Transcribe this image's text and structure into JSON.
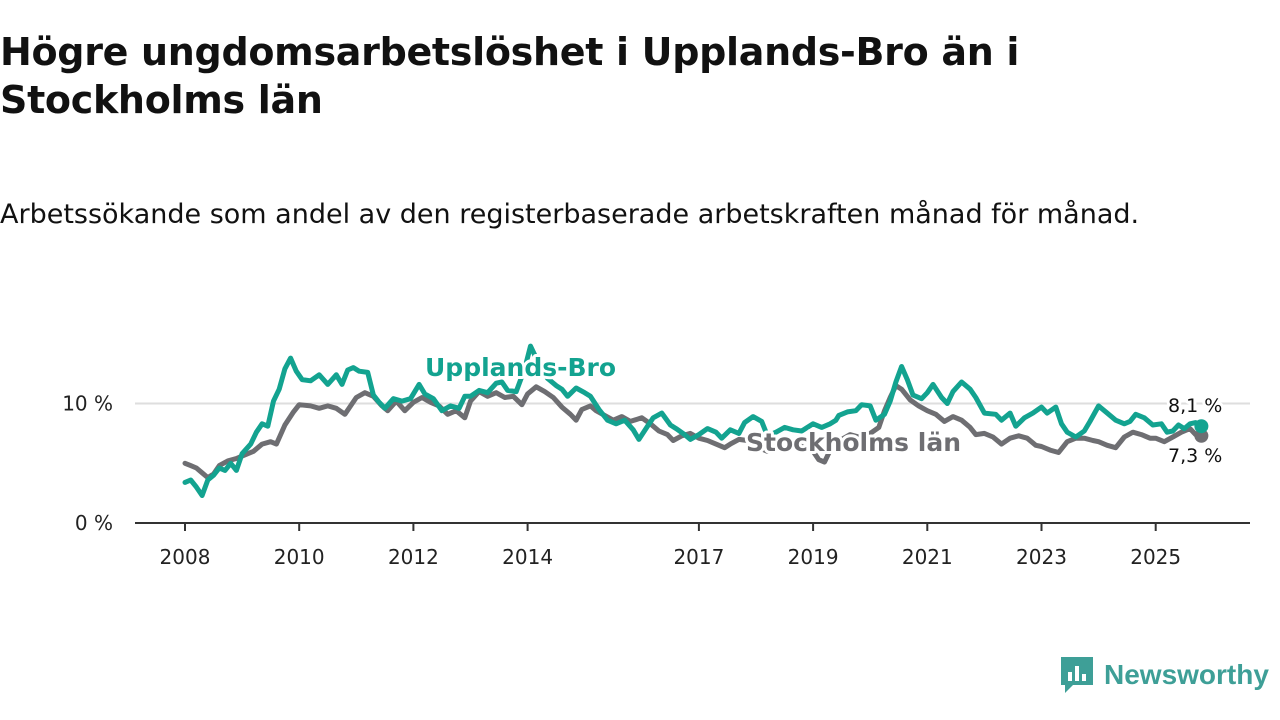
{
  "title": "Högre ungdomsarbetslöshet i Upplands-Bro än i Stockholms län",
  "subtitle": "Arbetssökande som andel av den registerbaserade arbetskraften månad för månad.",
  "brand": {
    "name": "Newsworthy",
    "icon": "newsworthy-logo-icon",
    "color": "#3e9f97"
  },
  "chart_data": {
    "type": "line",
    "title": "Högre ungdomsarbetslöshet i Upplands-Bro än i Stockholms län",
    "xlabel": "",
    "ylabel": "",
    "xlim": [
      2007.75,
      2026.05
    ],
    "ylim": [
      0,
      15
    ],
    "x_ticks": [
      {
        "value": 2008,
        "label": "2008"
      },
      {
        "value": 2010,
        "label": "2010"
      },
      {
        "value": 2012,
        "label": "2012"
      },
      {
        "value": 2014,
        "label": "2014"
      },
      {
        "value": 2017,
        "label": "2017"
      },
      {
        "value": 2019,
        "label": "2019"
      },
      {
        "value": 2021,
        "label": "2021"
      },
      {
        "value": 2023,
        "label": "2023"
      },
      {
        "value": 2025,
        "label": "2025"
      }
    ],
    "y_ticks": [
      {
        "value": 0,
        "label": "0 %"
      },
      {
        "value": 10,
        "label": "10 %"
      }
    ],
    "grid": true,
    "series": [
      {
        "name": "Stockholms län",
        "color": "#6e6e72",
        "end_label": "7,3 %",
        "points": [
          [
            2008.0,
            5.0
          ],
          [
            2008.1,
            4.8
          ],
          [
            2008.2,
            4.6
          ],
          [
            2008.3,
            4.2
          ],
          [
            2008.4,
            3.8
          ],
          [
            2008.5,
            4.1
          ],
          [
            2008.6,
            4.8
          ],
          [
            2008.75,
            5.2
          ],
          [
            2008.9,
            5.4
          ],
          [
            2009.0,
            5.6
          ],
          [
            2009.2,
            6.0
          ],
          [
            2009.35,
            6.6
          ],
          [
            2009.5,
            6.8
          ],
          [
            2009.6,
            6.6
          ],
          [
            2009.75,
            8.2
          ],
          [
            2009.9,
            9.3
          ],
          [
            2010.0,
            9.9
          ],
          [
            2010.2,
            9.8
          ],
          [
            2010.35,
            9.6
          ],
          [
            2010.5,
            9.8
          ],
          [
            2010.65,
            9.6
          ],
          [
            2010.8,
            9.1
          ],
          [
            2010.9,
            9.8
          ],
          [
            2011.0,
            10.5
          ],
          [
            2011.15,
            10.9
          ],
          [
            2011.3,
            10.6
          ],
          [
            2011.45,
            9.8
          ],
          [
            2011.55,
            9.4
          ],
          [
            2011.7,
            10.2
          ],
          [
            2011.85,
            9.4
          ],
          [
            2012.0,
            10.1
          ],
          [
            2012.15,
            10.5
          ],
          [
            2012.3,
            10.1
          ],
          [
            2012.45,
            9.8
          ],
          [
            2012.6,
            9.1
          ],
          [
            2012.75,
            9.4
          ],
          [
            2012.9,
            8.8
          ],
          [
            2013.0,
            10.2
          ],
          [
            2013.15,
            11.0
          ],
          [
            2013.3,
            10.6
          ],
          [
            2013.45,
            10.9
          ],
          [
            2013.6,
            10.5
          ],
          [
            2013.75,
            10.6
          ],
          [
            2013.9,
            9.9
          ],
          [
            2014.0,
            10.8
          ],
          [
            2014.15,
            11.4
          ],
          [
            2014.3,
            11.0
          ],
          [
            2014.45,
            10.5
          ],
          [
            2014.6,
            9.7
          ],
          [
            2014.75,
            9.1
          ],
          [
            2014.85,
            8.6
          ],
          [
            2014.95,
            9.5
          ],
          [
            2015.1,
            9.8
          ],
          [
            2015.2,
            9.4
          ],
          [
            2015.35,
            9.0
          ],
          [
            2015.5,
            8.6
          ],
          [
            2015.65,
            8.9
          ],
          [
            2015.8,
            8.5
          ],
          [
            2016.0,
            8.8
          ],
          [
            2016.15,
            8.3
          ],
          [
            2016.3,
            7.7
          ],
          [
            2016.45,
            7.4
          ],
          [
            2016.55,
            6.9
          ],
          [
            2016.7,
            7.3
          ],
          [
            2016.85,
            7.5
          ],
          [
            2017.0,
            7.1
          ],
          [
            2017.15,
            6.9
          ],
          [
            2017.3,
            6.6
          ],
          [
            2017.45,
            6.3
          ],
          [
            2017.55,
            6.6
          ],
          [
            2017.7,
            7.0
          ],
          [
            2017.85,
            6.9
          ],
          [
            2018.0,
            6.4
          ],
          [
            2018.2,
            6.0
          ],
          [
            2018.35,
            6.4
          ],
          [
            2018.5,
            7.1
          ],
          [
            2018.65,
            6.8
          ],
          [
            2018.8,
            6.4
          ],
          [
            2019.0,
            6.0
          ],
          [
            2019.1,
            5.3
          ],
          [
            2019.2,
            5.1
          ],
          [
            2019.35,
            6.6
          ],
          [
            2019.5,
            7.0
          ],
          [
            2019.65,
            7.4
          ],
          [
            2019.8,
            7.2
          ],
          [
            2020.0,
            7.5
          ],
          [
            2020.15,
            8.0
          ],
          [
            2020.25,
            9.4
          ],
          [
            2020.35,
            10.5
          ],
          [
            2020.45,
            11.5
          ],
          [
            2020.55,
            11.2
          ],
          [
            2020.7,
            10.3
          ],
          [
            2020.85,
            9.8
          ],
          [
            2021.0,
            9.4
          ],
          [
            2021.15,
            9.1
          ],
          [
            2021.3,
            8.5
          ],
          [
            2021.45,
            8.9
          ],
          [
            2021.6,
            8.6
          ],
          [
            2021.75,
            8.0
          ],
          [
            2021.85,
            7.4
          ],
          [
            2022.0,
            7.5
          ],
          [
            2022.15,
            7.2
          ],
          [
            2022.3,
            6.6
          ],
          [
            2022.45,
            7.1
          ],
          [
            2022.6,
            7.3
          ],
          [
            2022.75,
            7.1
          ],
          [
            2022.9,
            6.5
          ],
          [
            2023.0,
            6.4
          ],
          [
            2023.15,
            6.1
          ],
          [
            2023.3,
            5.9
          ],
          [
            2023.45,
            6.8
          ],
          [
            2023.6,
            7.1
          ],
          [
            2023.75,
            7.1
          ],
          [
            2023.9,
            6.9
          ],
          [
            2024.0,
            6.8
          ],
          [
            2024.15,
            6.5
          ],
          [
            2024.3,
            6.3
          ],
          [
            2024.45,
            7.2
          ],
          [
            2024.6,
            7.6
          ],
          [
            2024.75,
            7.4
          ],
          [
            2024.9,
            7.1
          ],
          [
            2025.0,
            7.1
          ],
          [
            2025.15,
            6.8
          ],
          [
            2025.3,
            7.2
          ],
          [
            2025.45,
            7.6
          ],
          [
            2025.6,
            7.9
          ],
          [
            2025.7,
            7.4
          ],
          [
            2025.8,
            7.3
          ]
        ]
      },
      {
        "name": "Upplands-Bro",
        "color": "#13a390",
        "end_label": "8,1 %",
        "points": [
          [
            2008.0,
            3.4
          ],
          [
            2008.1,
            3.6
          ],
          [
            2008.2,
            3.0
          ],
          [
            2008.3,
            2.3
          ],
          [
            2008.4,
            3.6
          ],
          [
            2008.5,
            4.0
          ],
          [
            2008.6,
            4.6
          ],
          [
            2008.7,
            4.4
          ],
          [
            2008.8,
            5.0
          ],
          [
            2008.9,
            4.4
          ],
          [
            2009.0,
            5.8
          ],
          [
            2009.15,
            6.6
          ],
          [
            2009.25,
            7.6
          ],
          [
            2009.35,
            8.3
          ],
          [
            2009.45,
            8.1
          ],
          [
            2009.55,
            10.2
          ],
          [
            2009.65,
            11.2
          ],
          [
            2009.75,
            12.9
          ],
          [
            2009.85,
            13.8
          ],
          [
            2009.95,
            12.7
          ],
          [
            2010.05,
            12.0
          ],
          [
            2010.2,
            11.9
          ],
          [
            2010.35,
            12.4
          ],
          [
            2010.5,
            11.6
          ],
          [
            2010.65,
            12.4
          ],
          [
            2010.75,
            11.6
          ],
          [
            2010.85,
            12.8
          ],
          [
            2010.95,
            13.0
          ],
          [
            2011.05,
            12.7
          ],
          [
            2011.2,
            12.6
          ],
          [
            2011.3,
            10.7
          ],
          [
            2011.4,
            10.1
          ],
          [
            2011.5,
            9.6
          ],
          [
            2011.65,
            10.4
          ],
          [
            2011.8,
            10.2
          ],
          [
            2011.95,
            10.4
          ],
          [
            2012.1,
            11.6
          ],
          [
            2012.2,
            10.8
          ],
          [
            2012.35,
            10.4
          ],
          [
            2012.5,
            9.4
          ],
          [
            2012.65,
            9.8
          ],
          [
            2012.8,
            9.6
          ],
          [
            2012.9,
            10.6
          ],
          [
            2013.0,
            10.6
          ],
          [
            2013.15,
            11.1
          ],
          [
            2013.3,
            10.9
          ],
          [
            2013.45,
            11.7
          ],
          [
            2013.55,
            11.8
          ],
          [
            2013.65,
            11.1
          ],
          [
            2013.8,
            11.0
          ],
          [
            2013.95,
            12.9
          ],
          [
            2014.05,
            14.8
          ],
          [
            2014.2,
            13.3
          ],
          [
            2014.35,
            12.1
          ],
          [
            2014.5,
            11.5
          ],
          [
            2014.6,
            11.2
          ],
          [
            2014.7,
            10.6
          ],
          [
            2014.85,
            11.3
          ],
          [
            2015.0,
            10.9
          ],
          [
            2015.1,
            10.6
          ],
          [
            2015.25,
            9.5
          ],
          [
            2015.4,
            8.6
          ],
          [
            2015.55,
            8.3
          ],
          [
            2015.7,
            8.6
          ],
          [
            2015.85,
            7.8
          ],
          [
            2015.95,
            7.0
          ],
          [
            2016.1,
            8.1
          ],
          [
            2016.2,
            8.8
          ],
          [
            2016.35,
            9.2
          ],
          [
            2016.5,
            8.2
          ],
          [
            2016.6,
            7.9
          ],
          [
            2016.75,
            7.4
          ],
          [
            2016.85,
            7.0
          ],
          [
            2017.0,
            7.4
          ],
          [
            2017.15,
            7.9
          ],
          [
            2017.3,
            7.6
          ],
          [
            2017.4,
            7.1
          ],
          [
            2017.55,
            7.8
          ],
          [
            2017.7,
            7.5
          ],
          [
            2017.8,
            8.4
          ],
          [
            2017.95,
            8.9
          ],
          [
            2018.1,
            8.5
          ],
          [
            2018.2,
            7.3
          ],
          [
            2018.35,
            7.6
          ],
          [
            2018.5,
            8.0
          ],
          [
            2018.65,
            7.8
          ],
          [
            2018.8,
            7.7
          ],
          [
            2019.0,
            8.3
          ],
          [
            2019.15,
            8.0
          ],
          [
            2019.3,
            8.3
          ],
          [
            2019.4,
            8.6
          ],
          [
            2019.45,
            9.0
          ],
          [
            2019.6,
            9.3
          ],
          [
            2019.75,
            9.4
          ],
          [
            2019.85,
            9.9
          ],
          [
            2020.0,
            9.8
          ],
          [
            2020.1,
            8.6
          ],
          [
            2020.25,
            9.1
          ],
          [
            2020.35,
            10.2
          ],
          [
            2020.45,
            11.8
          ],
          [
            2020.55,
            13.1
          ],
          [
            2020.65,
            12.0
          ],
          [
            2020.75,
            10.7
          ],
          [
            2020.9,
            10.4
          ],
          [
            2021.0,
            10.9
          ],
          [
            2021.1,
            11.6
          ],
          [
            2021.25,
            10.5
          ],
          [
            2021.35,
            10.0
          ],
          [
            2021.45,
            11.0
          ],
          [
            2021.6,
            11.8
          ],
          [
            2021.75,
            11.2
          ],
          [
            2021.85,
            10.5
          ],
          [
            2022.0,
            9.2
          ],
          [
            2022.2,
            9.1
          ],
          [
            2022.3,
            8.6
          ],
          [
            2022.45,
            9.2
          ],
          [
            2022.55,
            8.1
          ],
          [
            2022.7,
            8.8
          ],
          [
            2022.85,
            9.2
          ],
          [
            2023.0,
            9.7
          ],
          [
            2023.1,
            9.2
          ],
          [
            2023.25,
            9.7
          ],
          [
            2023.35,
            8.3
          ],
          [
            2023.45,
            7.6
          ],
          [
            2023.6,
            7.2
          ],
          [
            2023.75,
            7.7
          ],
          [
            2023.85,
            8.5
          ],
          [
            2024.0,
            9.8
          ],
          [
            2024.15,
            9.2
          ],
          [
            2024.3,
            8.6
          ],
          [
            2024.45,
            8.3
          ],
          [
            2024.55,
            8.5
          ],
          [
            2024.65,
            9.1
          ],
          [
            2024.8,
            8.8
          ],
          [
            2024.95,
            8.2
          ],
          [
            2025.1,
            8.3
          ],
          [
            2025.2,
            7.6
          ],
          [
            2025.3,
            7.7
          ],
          [
            2025.4,
            8.2
          ],
          [
            2025.5,
            7.9
          ],
          [
            2025.6,
            8.3
          ],
          [
            2025.7,
            8.4
          ],
          [
            2025.8,
            8.1
          ]
        ]
      }
    ]
  }
}
